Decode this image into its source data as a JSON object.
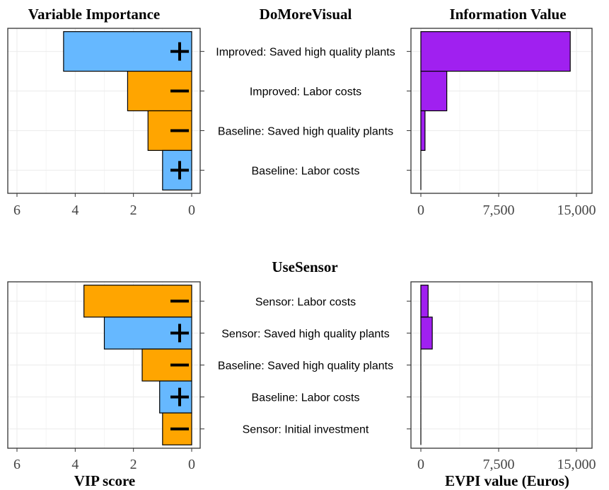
{
  "titles": {
    "vip": "Variable Importance",
    "evpi": "Information Value",
    "x_vip": "VIP score",
    "x_evpi": "EVPI value (Euros)"
  },
  "colors": {
    "positive": "#66b8ff",
    "negative": "#ffa500",
    "evpi": "#a020f0",
    "panel_border": "#333333",
    "grid": "#ebebeb"
  },
  "chart_data": [
    {
      "type": "bar",
      "decision": "DoMoreVisual",
      "variables": [
        "Improved: Saved high quality plants",
        "Improved: Labor costs",
        "Baseline: Saved high quality plants",
        "Baseline: Labor costs"
      ],
      "vip": {
        "values": [
          4.4,
          2.2,
          1.5,
          1.0
        ],
        "signs": [
          "+",
          "−",
          "−",
          "+"
        ],
        "xlim": [
          6,
          0
        ],
        "ticks": [
          "6",
          "4",
          "2",
          "0"
        ],
        "tick_values": [
          6,
          4,
          2,
          0
        ],
        "xlabel": ""
      },
      "evpi": {
        "values": [
          14400,
          2500,
          400,
          0
        ],
        "xlim": [
          0,
          15000
        ],
        "ticks": [
          "0",
          "7,500",
          "15,000"
        ],
        "tick_values": [
          0,
          7500,
          15000
        ],
        "xlabel": ""
      }
    },
    {
      "type": "bar",
      "decision": "UseSensor",
      "variables": [
        "Sensor: Labor costs",
        "Sensor: Saved high quality plants",
        "Baseline: Saved high quality plants",
        "Baseline: Labor costs",
        "Sensor: Initial investment"
      ],
      "vip": {
        "values": [
          3.7,
          3.0,
          1.7,
          1.1,
          1.0
        ],
        "signs": [
          "−",
          "+",
          "−",
          "+",
          "−"
        ],
        "xlim": [
          6,
          0
        ],
        "ticks": [
          "6",
          "4",
          "2",
          "0"
        ],
        "tick_values": [
          6,
          4,
          2,
          0
        ],
        "xlabel": "VIP score"
      },
      "evpi": {
        "values": [
          700,
          1100,
          0,
          0,
          0
        ],
        "xlim": [
          0,
          15000
        ],
        "ticks": [
          "0",
          "7,500",
          "15,000"
        ],
        "tick_values": [
          0,
          7500,
          15000
        ],
        "xlabel": "EVPI value (Euros)"
      }
    }
  ]
}
